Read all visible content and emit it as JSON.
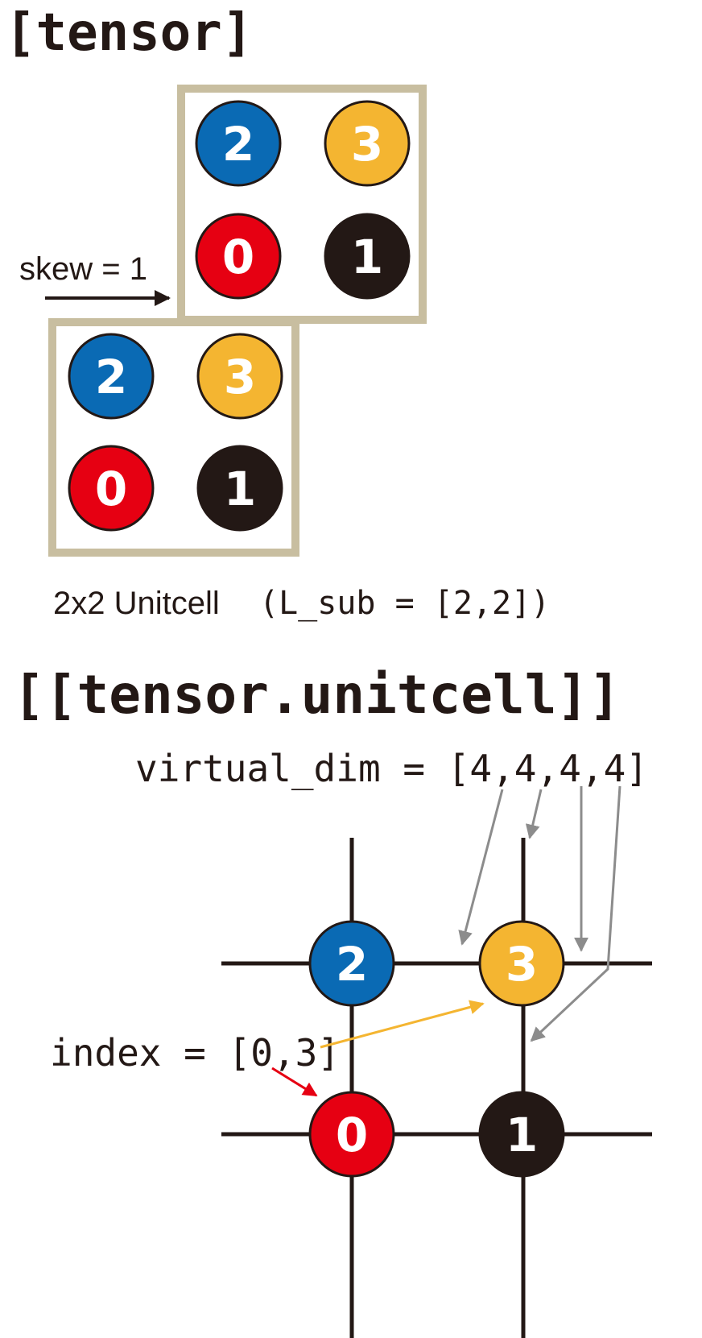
{
  "headings": {
    "tensor": "[tensor]",
    "unitcell": "[[tensor.unitcell]]"
  },
  "labels": {
    "skew": "skew = 1",
    "unitcell_caption_left": "2x2 Unitcell",
    "unitcell_caption_right": "(L_sub = [2,2])",
    "virtual_dim": "virtual_dim = [4,4,4,4]",
    "index": "index = [0,3]"
  },
  "sites": [
    {
      "label": "2",
      "color": "#0a6ab4"
    },
    {
      "label": "3",
      "color": "#f4b531"
    },
    {
      "label": "0",
      "color": "#e60012"
    },
    {
      "label": "1",
      "color": "#231815"
    }
  ],
  "colors": {
    "box_border": "#c8bea0",
    "line": "#231815",
    "pointer_gray": "#8c8c8c",
    "pointer_yellow": "#f4b531",
    "pointer_red": "#e60012"
  }
}
